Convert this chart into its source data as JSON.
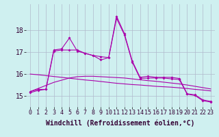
{
  "x": [
    0,
    1,
    2,
    3,
    4,
    5,
    6,
    7,
    8,
    9,
    10,
    11,
    12,
    13,
    14,
    15,
    16,
    17,
    18,
    19,
    20,
    21,
    22,
    23
  ],
  "series1": [
    15.2,
    15.3,
    15.3,
    17.1,
    17.15,
    17.65,
    17.05,
    16.95,
    16.85,
    16.65,
    16.75,
    18.65,
    17.85,
    16.6,
    15.85,
    15.9,
    15.85,
    15.85,
    15.85,
    15.8,
    15.1,
    15.05,
    14.82,
    14.75
  ],
  "series2": [
    15.15,
    15.25,
    15.3,
    17.05,
    17.1,
    17.1,
    17.1,
    16.95,
    16.85,
    16.8,
    16.75,
    18.55,
    17.8,
    16.55,
    15.8,
    15.82,
    15.82,
    15.82,
    15.78,
    15.75,
    15.08,
    15.02,
    14.78,
    14.72
  ],
  "series3": [
    16.0,
    15.97,
    15.93,
    15.89,
    15.85,
    15.81,
    15.77,
    15.73,
    15.7,
    15.66,
    15.62,
    15.58,
    15.55,
    15.52,
    15.5,
    15.47,
    15.44,
    15.42,
    15.4,
    15.37,
    15.34,
    15.3,
    15.27,
    15.23
  ],
  "series4": [
    15.2,
    15.34,
    15.48,
    15.62,
    15.72,
    15.82,
    15.88,
    15.9,
    15.9,
    15.88,
    15.86,
    15.84,
    15.82,
    15.78,
    15.74,
    15.7,
    15.67,
    15.63,
    15.59,
    15.55,
    15.5,
    15.44,
    15.38,
    15.32
  ],
  "line_color": "#aa00aa",
  "bg_color": "#cff0f0",
  "grid_color": "#b0b8cc",
  "xlabel": "Windchill (Refroidissement éolien,°C)",
  "xlabel_fontsize": 7,
  "tick_fontsize": 6,
  "ylim": [
    14.5,
    19.2
  ],
  "yticks": [
    15,
    16,
    17,
    18
  ],
  "xticks": [
    0,
    1,
    2,
    3,
    4,
    5,
    6,
    7,
    8,
    9,
    10,
    11,
    12,
    13,
    14,
    15,
    16,
    17,
    18,
    19,
    20,
    21,
    22,
    23
  ]
}
